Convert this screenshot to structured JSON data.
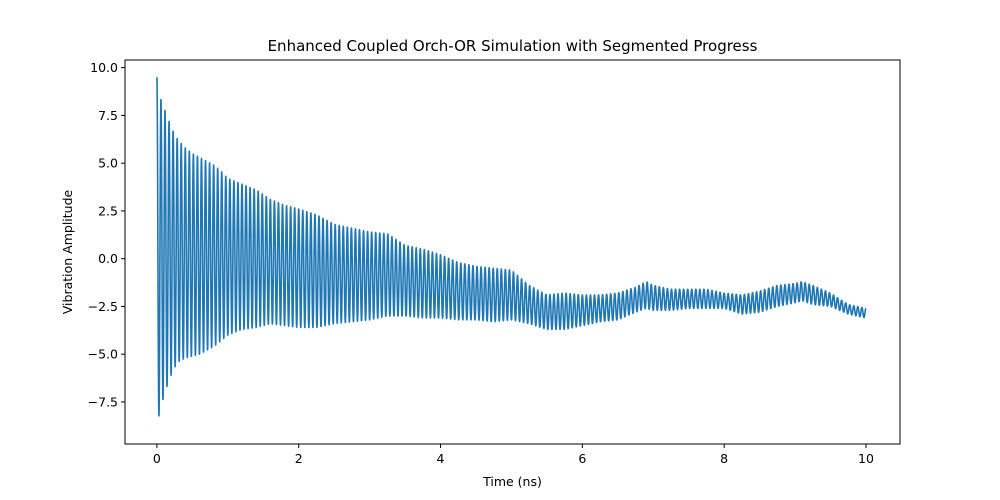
{
  "chart_data": {
    "type": "line",
    "title": "Enhanced Coupled Orch-OR Simulation with Segmented Progress",
    "xlabel": "Time (ns)",
    "ylabel": "Vibration Amplitude",
    "xlim": [
      -0.45,
      10.48
    ],
    "ylim": [
      -9.7,
      10.4
    ],
    "x_ticks": [
      0,
      2,
      4,
      6,
      8,
      10
    ],
    "x_tick_labels": [
      "0",
      "2",
      "4",
      "6",
      "8",
      "10"
    ],
    "y_ticks": [
      -7.5,
      -5.0,
      -2.5,
      0.0,
      2.5,
      5.0,
      7.5,
      10.0
    ],
    "y_tick_labels": [
      "−7.5",
      "−5.0",
      "−2.5",
      "0.0",
      "2.5",
      "5.0",
      "7.5",
      "10.0"
    ],
    "grid": false,
    "line_color": "#1f77b4",
    "series": [
      {
        "x": [
          0.0,
          0.05,
          0.1,
          0.15,
          0.2,
          0.25,
          0.3,
          0.4,
          0.5,
          0.6,
          0.7,
          0.8,
          0.9,
          1.0,
          1.2,
          1.4,
          1.6,
          1.8,
          2.0,
          2.25,
          2.5,
          2.75,
          3.0,
          3.25,
          3.5,
          3.75,
          4.0,
          4.25,
          4.5,
          4.75,
          5.0,
          5.25,
          5.5,
          5.75,
          6.0,
          6.25,
          6.5,
          6.75,
          6.9,
          7.0,
          7.25,
          7.5,
          7.75,
          8.0,
          8.25,
          8.5,
          8.75,
          9.0,
          9.1,
          9.25,
          9.5,
          9.75,
          10.0
        ],
        "upper": [
          9.5,
          8.4,
          7.9,
          7.4,
          6.9,
          6.5,
          6.2,
          5.8,
          5.5,
          5.3,
          5.1,
          4.9,
          4.6,
          4.2,
          3.9,
          3.6,
          3.1,
          2.8,
          2.6,
          2.3,
          1.8,
          1.6,
          1.4,
          1.3,
          0.7,
          0.5,
          0.2,
          -0.2,
          -0.4,
          -0.5,
          -0.6,
          -1.4,
          -1.9,
          -1.8,
          -1.9,
          -1.9,
          -1.8,
          -1.5,
          -1.2,
          -1.4,
          -1.6,
          -1.6,
          -1.6,
          -1.8,
          -1.9,
          -1.7,
          -1.4,
          -1.3,
          -1.2,
          -1.4,
          -1.8,
          -2.4,
          -2.6
        ],
        "lower": [
          -8.8,
          -7.8,
          -7.2,
          -6.6,
          -6.1,
          -5.7,
          -5.4,
          -5.2,
          -5.1,
          -5.0,
          -4.8,
          -4.6,
          -4.3,
          -4.0,
          -3.7,
          -3.6,
          -3.4,
          -3.5,
          -3.6,
          -3.6,
          -3.4,
          -3.3,
          -3.2,
          -3.0,
          -3.0,
          -3.1,
          -3.1,
          -3.2,
          -3.2,
          -3.3,
          -3.2,
          -3.4,
          -3.7,
          -3.7,
          -3.5,
          -3.3,
          -3.2,
          -2.8,
          -2.6,
          -2.7,
          -2.7,
          -2.6,
          -2.6,
          -2.6,
          -2.9,
          -2.8,
          -2.5,
          -2.3,
          -2.2,
          -2.4,
          -2.5,
          -2.9,
          -3.1
        ],
        "cycles": 175
      }
    ]
  }
}
